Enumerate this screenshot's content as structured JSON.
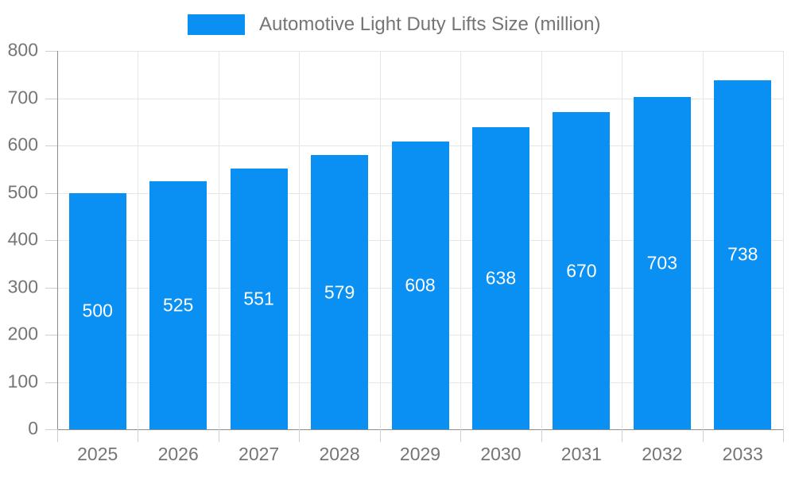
{
  "chart_data": {
    "type": "bar",
    "title": "Automotive Light Duty Lifts Size (million)",
    "categories": [
      "2025",
      "2026",
      "2027",
      "2028",
      "2029",
      "2030",
      "2031",
      "2032",
      "2033"
    ],
    "values": [
      500,
      525,
      551,
      579,
      608,
      638,
      670,
      703,
      738
    ],
    "xlabel": "",
    "ylabel": "",
    "ylim": [
      0,
      800
    ],
    "ytick_step": 100,
    "grid": true,
    "legend_position": "top",
    "value_labels": "centered-inside-bars",
    "colors": {
      "bar": "#0a8ff2",
      "grid": "#e6e6e6",
      "axis_line": "#8c8c8c",
      "tick": "#cfcfcf",
      "axis_label": "#757575",
      "value_label": "#ffffff",
      "background": "#ffffff"
    }
  }
}
